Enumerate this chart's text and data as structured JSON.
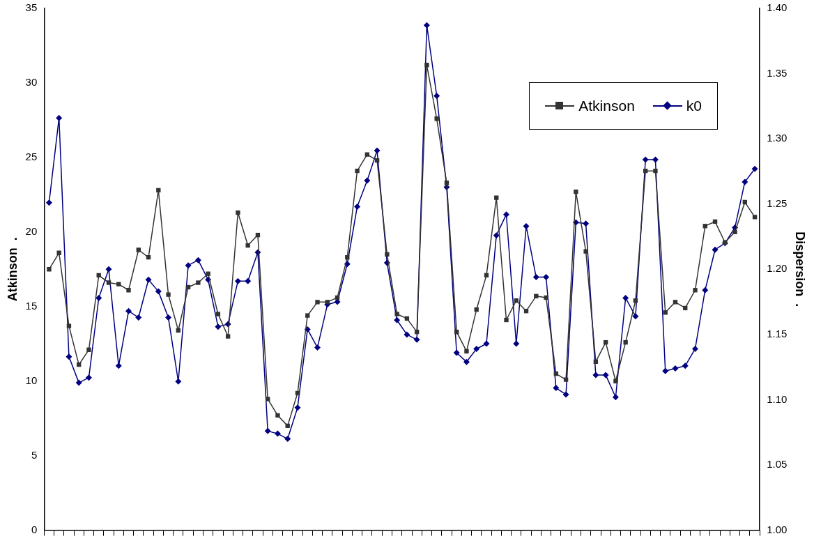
{
  "chart_data": {
    "type": "line",
    "ylabel": "Atkinson  .",
    "y2label": "Dispersion  .",
    "categories": [
      null,
      null,
      null,
      null,
      null,
      null,
      null,
      null,
      null,
      null,
      null,
      null,
      null,
      null,
      null,
      null,
      null,
      null,
      null,
      null,
      null,
      null,
      null,
      null,
      null,
      null,
      null,
      null,
      null,
      null,
      null,
      null,
      null,
      null,
      null,
      null,
      null,
      null,
      null,
      null,
      null,
      null,
      null,
      null,
      null,
      null,
      null,
      null,
      null,
      null,
      null,
      null,
      null,
      null,
      null,
      null,
      null,
      null,
      null,
      null,
      null,
      null,
      null,
      null,
      null,
      null,
      null,
      null,
      null,
      null,
      null,
      null
    ],
    "series": [
      {
        "name": "Atkinson",
        "color": "#333333",
        "marker": "square",
        "values": [
          17.5,
          18.6,
          13.7,
          11.1,
          12.1,
          17.1,
          16.6,
          16.5,
          16.1,
          18.8,
          18.3,
          22.8,
          15.8,
          13.4,
          16.3,
          16.6,
          17.2,
          14.5,
          13.0,
          21.3,
          19.1,
          19.8,
          8.8,
          7.7,
          7.0,
          9.2,
          14.4,
          15.3,
          15.3,
          15.6,
          18.3,
          24.1,
          25.2,
          24.8,
          18.5,
          14.5,
          14.2,
          13.3,
          31.2,
          27.6,
          23.3,
          13.3,
          12.0,
          14.8,
          17.1,
          22.3,
          14.1,
          15.4,
          14.7,
          15.7,
          15.6,
          10.5,
          10.1,
          22.7,
          18.7,
          11.3,
          12.6,
          10.0,
          12.6,
          15.4,
          24.1,
          24.1,
          14.6,
          15.3,
          14.9,
          16.1,
          20.4,
          20.7,
          19.3,
          20.0,
          22.0,
          21.0
        ]
      },
      {
        "name": "k0",
        "color": "#000080",
        "marker": "diamond",
        "axis": "y2",
        "values": [
          1.251,
          1.316,
          1.133,
          1.113,
          1.117,
          1.178,
          1.2,
          1.126,
          1.168,
          1.163,
          1.192,
          1.183,
          1.163,
          1.114,
          1.203,
          1.207,
          1.192,
          1.156,
          1.158,
          1.191,
          1.191,
          1.213,
          1.076,
          1.074,
          1.07,
          1.094,
          1.154,
          1.14,
          1.173,
          1.175,
          1.204,
          1.248,
          1.268,
          1.291,
          1.205,
          1.161,
          1.15,
          1.146,
          1.387,
          1.333,
          1.263,
          1.136,
          1.129,
          1.139,
          1.143,
          1.226,
          1.242,
          1.143,
          1.233,
          1.194,
          1.194,
          1.109,
          1.104,
          1.236,
          1.235,
          1.119,
          1.119,
          1.102,
          1.178,
          1.164,
          1.284,
          1.284,
          1.122,
          1.124,
          1.126,
          1.139,
          1.184,
          1.215,
          1.22,
          1.232,
          1.267,
          1.277
        ]
      }
    ],
    "ylim": [
      0,
      35
    ],
    "yticks": [
      0,
      5,
      10,
      15,
      20,
      25,
      30,
      35
    ],
    "y2lim": [
      1.0,
      1.4
    ],
    "y2ticks": [
      {
        "value": 1.0,
        "label": "1.00"
      },
      {
        "value": 1.05,
        "label": "1.05"
      },
      {
        "value": 1.1,
        "label": "1.10"
      },
      {
        "value": 1.15,
        "label": "1.15"
      },
      {
        "value": 1.2,
        "label": "1.20"
      },
      {
        "value": 1.25,
        "label": "1.25"
      },
      {
        "value": 1.3,
        "label": "1.30"
      },
      {
        "value": 1.35,
        "label": "1.35"
      },
      {
        "value": 1.4,
        "label": "1.40"
      }
    ],
    "legend": "top right",
    "grid": false,
    "line_style": "solid"
  }
}
